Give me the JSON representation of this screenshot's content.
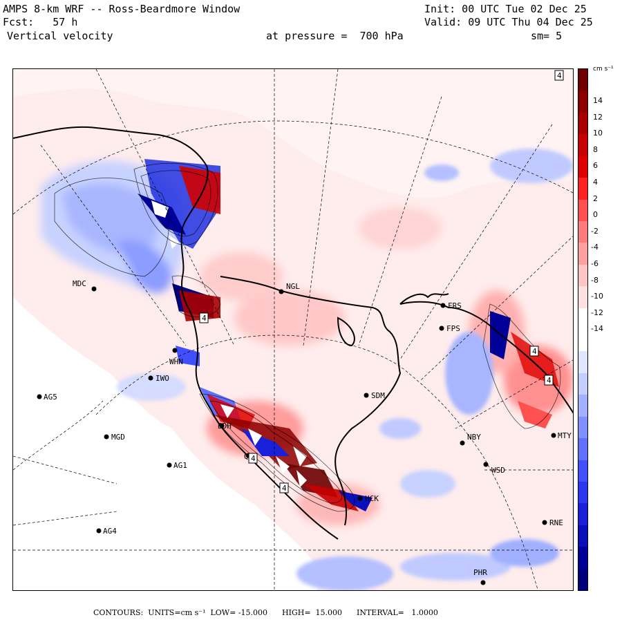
{
  "header": {
    "title": "AMPS 8-km WRF -- Ross-Beardmore Window",
    "init": "Init: 00 UTC Tue 02 Dec 25",
    "fcst": "Fcst:   57 h",
    "valid": "Valid: 09 UTC Thu 04 Dec 25",
    "field": "Vertical velocity",
    "pressure": "at pressure =  700 hPa",
    "smoothing": "sm= 5"
  },
  "colorbar": {
    "units": "cm s⁻¹",
    "ticks": [
      "14",
      "12",
      "10",
      "8",
      "6",
      "4",
      "2",
      "0",
      "-2",
      "-4",
      "-6",
      "-8",
      "-10",
      "-12",
      "-14"
    ],
    "colors_top_to_bottom": [
      "#6e0000",
      "#8c0000",
      "#a80000",
      "#c80000",
      "#e00000",
      "#ff2020",
      "#ff5050",
      "#ff7a7a",
      "#ffa0a0",
      "#ffc4c4",
      "#ffe0e0",
      "#ffffff",
      "#ffffff",
      "#e0e6ff",
      "#c4ceff",
      "#a2b0ff",
      "#8090ff",
      "#6070ff",
      "#4050ff",
      "#2a38f0",
      "#1a20d8",
      "#0a10b8",
      "#000098",
      "#00007c"
    ]
  },
  "stations": [
    {
      "id": "MDC"
    },
    {
      "id": "NGL"
    },
    {
      "id": "WHN"
    },
    {
      "id": "IWO"
    },
    {
      "id": "AG5"
    },
    {
      "id": "MGD"
    },
    {
      "id": "AG1"
    },
    {
      "id": "AG4"
    },
    {
      "id": "SDM"
    },
    {
      "id": "NBY"
    },
    {
      "id": "WSD"
    },
    {
      "id": "HCK"
    },
    {
      "id": "RNE"
    },
    {
      "id": "MTY"
    },
    {
      "id": "FRS"
    },
    {
      "id": "FPS"
    },
    {
      "id": "PHR"
    },
    {
      "id": "BDH"
    },
    {
      "id": "QUA"
    }
  ],
  "markers": [
    "4",
    "4",
    "4",
    "4",
    "4",
    "4"
  ],
  "footer": {
    "contours": "CONTOURS:  UNITS=cm s⁻¹  LOW= -15.000      HIGH=  15.000      INTERVAL=   1.0000"
  }
}
